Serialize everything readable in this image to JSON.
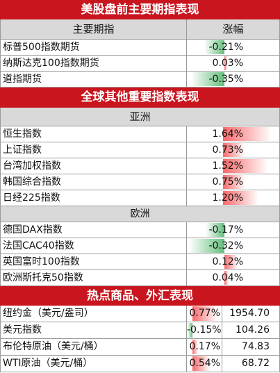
{
  "sections": {
    "us_futures_title": "美股盘前主要期指表现",
    "global_title": "全球其他重要指数表现",
    "commodities_title": "热点商品、外汇表现"
  },
  "us_futures": {
    "col_name": "主要期指",
    "col_change": "涨幅",
    "rows": [
      {
        "name": "标普500指数期货",
        "change": "-0.21%",
        "change_value": -0.21
      },
      {
        "name": "纳斯达克100指数期货",
        "change": "0.03%",
        "change_value": 0.03
      },
      {
        "name": "道指期货",
        "change": "-0.35%",
        "change_value": -0.35
      }
    ]
  },
  "asia": {
    "label": "亚洲",
    "rows": [
      {
        "name": "恒生指数",
        "change": "1.64%",
        "change_value": 1.64
      },
      {
        "name": "上证指数",
        "change": "0.73%",
        "change_value": 0.73
      },
      {
        "name": "台湾加权指数",
        "change": "1.52%",
        "change_value": 1.52
      },
      {
        "name": "韩国综合指数",
        "change": "0.75%",
        "change_value": 0.75
      },
      {
        "name": "日经225指数",
        "change": "1.20%",
        "change_value": 1.2
      }
    ]
  },
  "europe": {
    "label": "欧洲",
    "rows": [
      {
        "name": "德国DAX指数",
        "change": "-0.17%",
        "change_value": -0.17
      },
      {
        "name": "法国CAC40指数",
        "change": "-0.32%",
        "change_value": -0.32
      },
      {
        "name": "英国富时100指数",
        "change": "0.12%",
        "change_value": 0.12
      },
      {
        "name": "欧洲斯托克50指数",
        "change": "0.04%",
        "change_value": 0.04
      }
    ]
  },
  "commodities": {
    "rows": [
      {
        "name": "纽约金（美元/盎司）",
        "change": "0.77%",
        "change_value": 0.77,
        "price": "1954.70"
      },
      {
        "name": "美元指数",
        "change": "-0.15%",
        "change_value": -0.15,
        "price": "104.26"
      },
      {
        "name": "布伦特原油（美元/桶）",
        "change": "0.17%",
        "change_value": 0.17,
        "price": "74.83"
      },
      {
        "name": "WTI原油（美元/桶）",
        "change": "0.54%",
        "change_value": 0.54,
        "price": "68.72"
      }
    ]
  },
  "colors": {
    "banner_red": "#c9151e",
    "header_gray": "#d9d9d9",
    "positive_bar": "#f8696b",
    "negative_bar": "#63be7b"
  }
}
